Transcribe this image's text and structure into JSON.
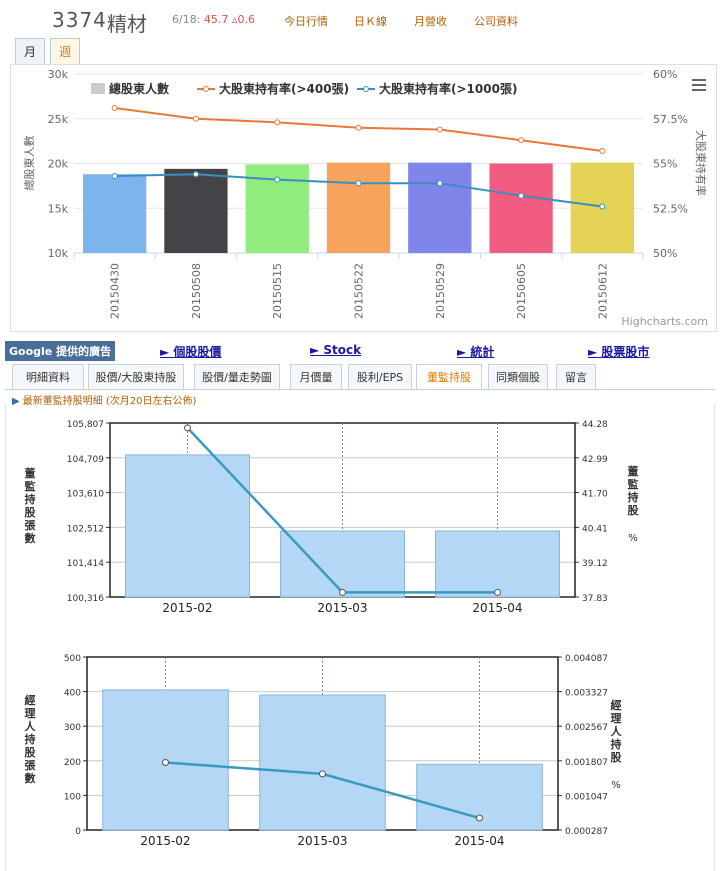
{
  "header": {
    "stock_id": "3374",
    "stock_name": "精材",
    "date": "6/18:",
    "price": "45.7",
    "change": "▵0.6",
    "links": [
      "今日行情",
      "日Ｋ線",
      "月營收",
      "公司資料"
    ]
  },
  "period_tabs": [
    "月",
    "週"
  ],
  "active_period": "週",
  "chart1": {
    "credit": "Highcharts.com",
    "legend": [
      "總股東人數",
      "大股東持有率(>400張)",
      "大股東持有率(>1000張)"
    ],
    "ylabel_left": "總股東人數",
    "ylabel_right": "大股東持有率",
    "left_ticks": [
      "30k",
      "25k",
      "20k",
      "15k",
      "10k"
    ],
    "right_ticks": [
      "60%",
      "57.5%",
      "55%",
      "52.5%",
      "50%"
    ]
  },
  "adbar": {
    "badge": "Google 提供的廣告",
    "links": [
      "► 個股股價",
      "► Stock",
      "► 統計",
      "► 股票股市"
    ]
  },
  "tabs": [
    "明細資料",
    "股價/大股東持股",
    "股價/量走勢圖",
    "月價量",
    "股利/EPS",
    "董監持股",
    "同類個股",
    "留言"
  ],
  "active_tab": "董監持股",
  "subtitle": "最新董監持股明細 (次月20日左右公佈)",
  "chart2": {
    "ylabel_left": "董監持股張數",
    "ylabel_right": "董監持股 %",
    "left_ticks": [
      "105,807",
      "104,709",
      "103,610",
      "102,512",
      "101,414",
      "100,316"
    ],
    "right_ticks": [
      "44.28",
      "42.99",
      "41.70",
      "40.41",
      "39.12",
      "37.83"
    ]
  },
  "chart3": {
    "ylabel_left": "經理人持股張數",
    "ylabel_right": "經理人持股 %",
    "left_ticks": [
      "500",
      "400",
      "300",
      "200",
      "100",
      "0"
    ],
    "right_ticks": [
      "0.004087",
      "0.003327",
      "0.002567",
      "0.001807",
      "0.001047",
      "0.000287"
    ]
  },
  "colors": {
    "line_400": "#e8783a",
    "line_1000": "#3a8fbf",
    "bar_blue": "#b3d7f5",
    "bar_stroke": "#8ab4d8",
    "line_teal": "#3a9ac0"
  },
  "chart_data": [
    {
      "type": "bar",
      "categories": [
        "20150430",
        "20150508",
        "20150515",
        "20150522",
        "20150529",
        "20150605",
        "20150612"
      ],
      "series": [
        {
          "name": "總股東人數",
          "type": "bar",
          "values": [
            18800,
            19400,
            19900,
            20100,
            20100,
            20000,
            20100
          ],
          "colors": [
            "#7cb5ec",
            "#434348",
            "#90ed7d",
            "#f7a35c",
            "#8085e9",
            "#f15c80",
            "#e4d354"
          ]
        },
        {
          "name": "大股東持有率(>400張)",
          "type": "line",
          "axis": "right",
          "values": [
            58.1,
            57.5,
            57.3,
            57.0,
            56.9,
            56.3,
            55.7
          ]
        },
        {
          "name": "大股東持有率(>1000張)",
          "type": "line",
          "axis": "right",
          "values": [
            54.3,
            54.4,
            54.1,
            53.9,
            53.9,
            53.2,
            52.6
          ]
        }
      ],
      "ylim": [
        10000,
        30000
      ],
      "ylim_right": [
        50,
        60
      ]
    },
    {
      "type": "bar",
      "categories": [
        "2015-02",
        "2015-03",
        "2015-04"
      ],
      "series": [
        {
          "type": "bar",
          "values": [
            104800,
            102400,
            102400
          ]
        },
        {
          "type": "line",
          "axis": "right",
          "values": [
            44.1,
            38.0,
            38.0
          ]
        }
      ],
      "ylim": [
        100316,
        105807
      ],
      "ylim_right": [
        37.83,
        44.28
      ]
    },
    {
      "type": "bar",
      "categories": [
        "2015-02",
        "2015-03",
        "2015-04"
      ],
      "series": [
        {
          "type": "bar",
          "values": [
            405,
            390,
            190
          ]
        },
        {
          "type": "line",
          "axis": "right",
          "values": [
            0.00177,
            0.00152,
            0.00055
          ]
        }
      ],
      "ylim": [
        0,
        500
      ],
      "ylim_right": [
        0.000287,
        0.004087
      ]
    }
  ]
}
